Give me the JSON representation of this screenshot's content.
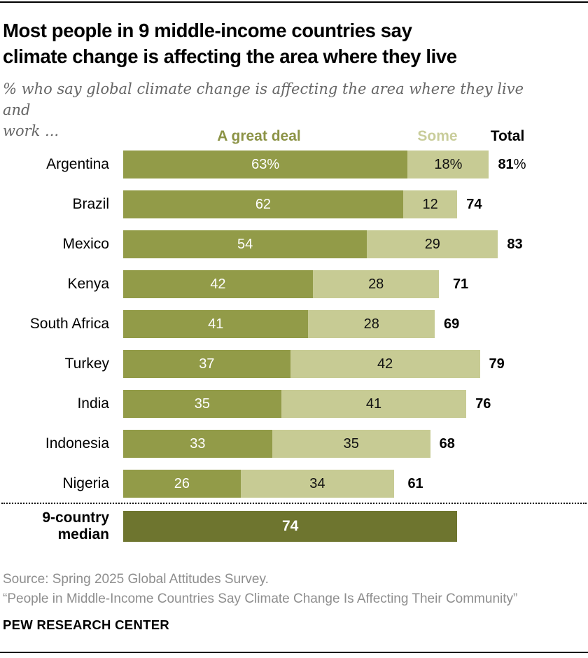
{
  "header": {
    "title": "Most people in 9 middle-income countries say climate change is affecting the area where they live",
    "title_lines": [
      "Most people in 9 middle-income countries say",
      "climate change is affecting the area where they live"
    ],
    "subtitle": "% who say global climate change is affecting the area where they live and work ...",
    "subtitle_lines": [
      "% who say global climate change is affecting the area where they live and",
      "work ..."
    ]
  },
  "legend": {
    "a_great_deal": "A great deal",
    "some": "Some",
    "total": "Total"
  },
  "colors": {
    "a_great_deal": "#929B48",
    "some": "#C7CB94",
    "median": "#6E752F",
    "legend_a_great_deal_text": "#8C9346",
    "legend_some_text": "#C9CD9B"
  },
  "chart_data": {
    "type": "bar",
    "stacked": true,
    "orientation": "horizontal",
    "unit": "%",
    "xlim": [
      0,
      100
    ],
    "title": "Most people in 9 middle-income countries say climate change is affecting the area where they live",
    "subtitle": "% who say global climate change is affecting the area where they live and work ...",
    "categories": [
      "Argentina",
      "Brazil",
      "Mexico",
      "Kenya",
      "South Africa",
      "Turkey",
      "India",
      "Indonesia",
      "Nigeria"
    ],
    "series": [
      {
        "name": "A great deal",
        "values": [
          63,
          62,
          54,
          42,
          41,
          37,
          35,
          33,
          26
        ]
      },
      {
        "name": "Some",
        "values": [
          18,
          12,
          29,
          28,
          28,
          42,
          41,
          35,
          34
        ]
      }
    ],
    "totals": [
      81,
      74,
      83,
      71,
      69,
      79,
      76,
      68,
      61
    ],
    "first_row_percent_suffix": true,
    "median": {
      "label": "9-country median",
      "value": 74
    }
  },
  "footer": {
    "source": "Source: Spring 2025 Global Attitudes Survey.",
    "quote": "“People in Middle-Income Countries Say Climate Change Is Affecting Their Community”",
    "brand": "PEW RESEARCH CENTER"
  }
}
